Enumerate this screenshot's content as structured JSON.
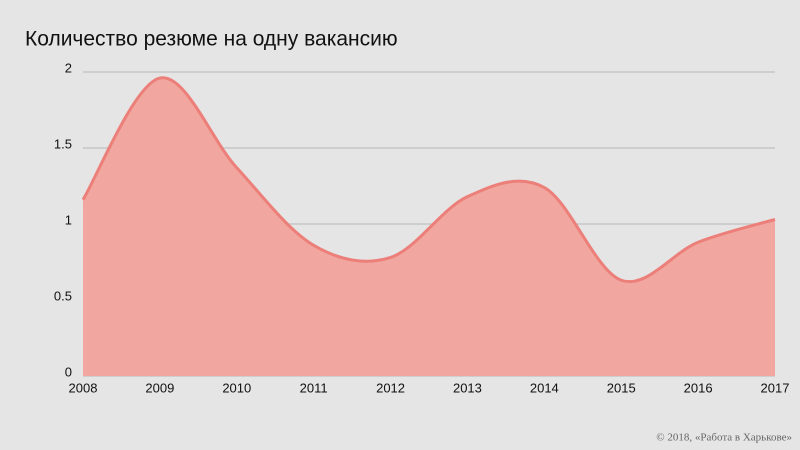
{
  "chart_data": {
    "type": "area",
    "title": "Количество резюме на одну вакансию",
    "x": [
      2008,
      2009,
      2010,
      2011,
      2012,
      2013,
      2014,
      2015,
      2016,
      2017
    ],
    "values": [
      1.16,
      1.96,
      1.37,
      0.86,
      0.78,
      1.18,
      1.24,
      0.63,
      0.88,
      1.03
    ],
    "color": "#ec7f79",
    "fill": "#f1a6a0",
    "xlim": [
      2008,
      2017
    ],
    "xticks": [
      2008,
      2009,
      2010,
      2011,
      2012,
      2013,
      2014,
      2015,
      2016,
      2017
    ],
    "ylim": [
      0,
      2
    ],
    "yticks": [
      0,
      0.5,
      1,
      1.5,
      2
    ],
    "grid": true,
    "smooth": true,
    "source": "© 2018, «Работа в Харькове»"
  }
}
